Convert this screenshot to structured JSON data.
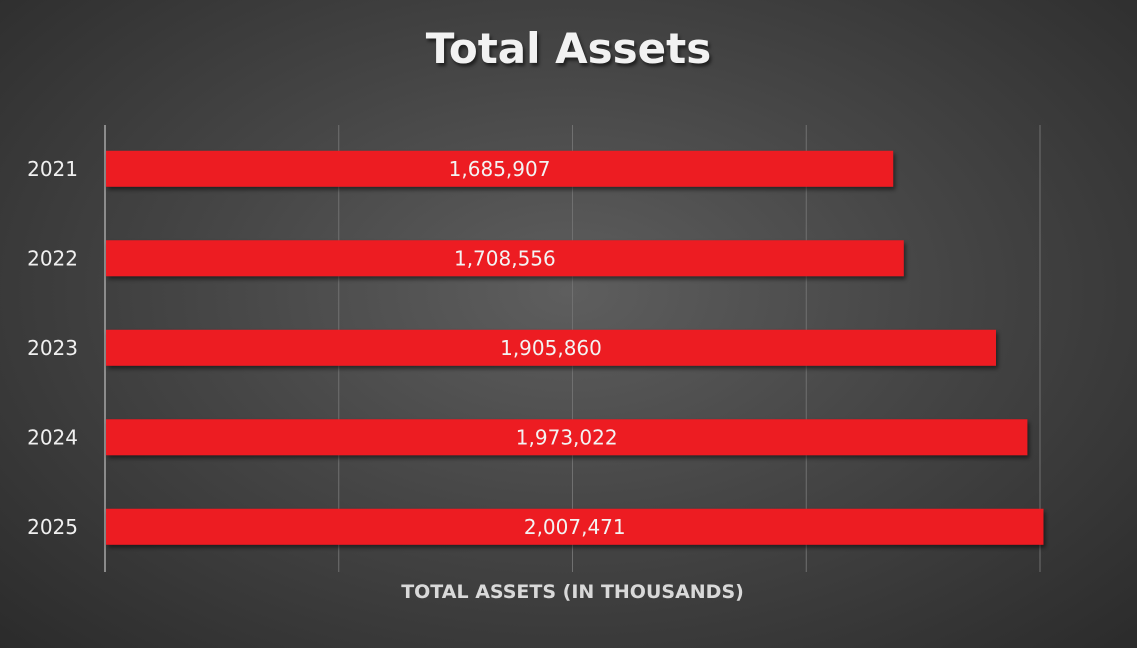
{
  "chart_data": {
    "type": "bar",
    "orientation": "horizontal",
    "title": "Total Assets",
    "xlabel": "TOTAL ASSETS (IN THOUSANDS)",
    "ylabel": "",
    "categories": [
      "2021",
      "2022",
      "2023",
      "2024",
      "2025"
    ],
    "values": [
      1685907,
      1708556,
      1905860,
      1973022,
      2007471
    ],
    "data_labels": [
      "1,685,907",
      "1,708,556",
      "1,905,860",
      "1,973,022",
      "2,007,471"
    ],
    "xlim": [
      0,
      2000000
    ],
    "grid": true,
    "legend": "none",
    "colors": {
      "bar": "#ed1c24",
      "background": "#4a4a4a",
      "text": "#f0f0f0"
    }
  }
}
